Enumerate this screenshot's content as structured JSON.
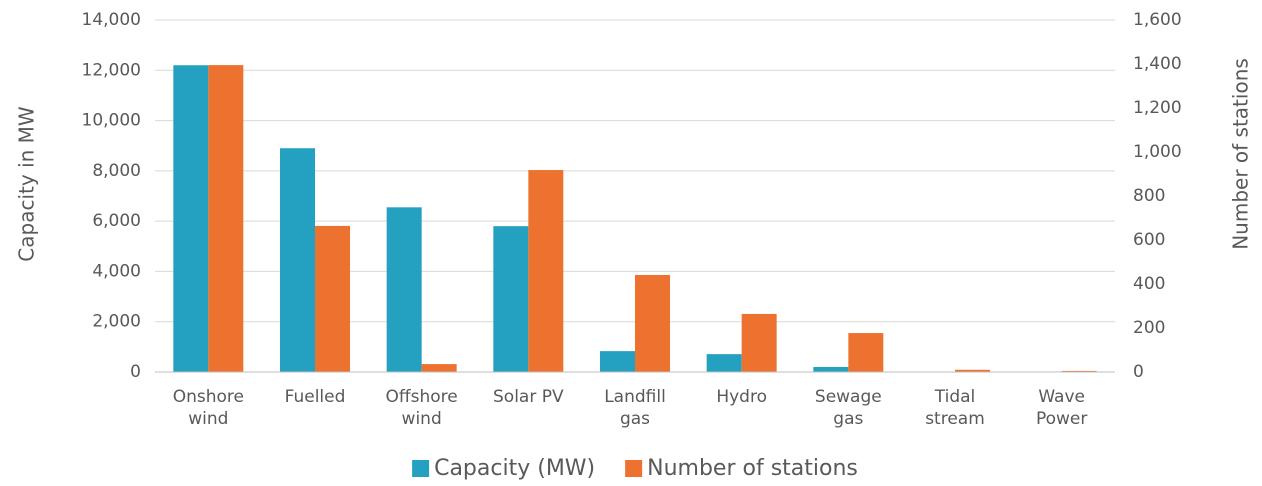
{
  "chart_data": {
    "type": "bar",
    "ylabel": "Capacity in MW",
    "y2label": "Number of stations",
    "categories": [
      "Onshore wind",
      "Fuelled",
      "Offshore wind",
      "Solar PV",
      "Landfill gas",
      "Hydro",
      "Sewage gas",
      "Tidal stream",
      "Wave Power"
    ],
    "series": [
      {
        "name": "Capacity (MW)",
        "color": "#24a0c0",
        "values": [
          12200,
          8900,
          6550,
          5800,
          830,
          710,
          200,
          2,
          1
        ]
      },
      {
        "name": "Number of stations",
        "color": "#ed7230",
        "axis": "y2",
        "values": [
          1395,
          664,
          36,
          918,
          441,
          264,
          177,
          10,
          5
        ]
      }
    ],
    "ylim": [
      0,
      14000
    ],
    "yticks": [
      0,
      {
        "value": 2000,
        "label": "2,000"
      },
      {
        "value": 4000,
        "label": "4,000"
      },
      {
        "value": 6000,
        "label": "6,000"
      },
      {
        "value": 8000,
        "label": "8,000"
      },
      {
        "value": 10000,
        "label": "10,000"
      },
      {
        "value": 12000,
        "label": "12,000"
      },
      {
        "value": 14000,
        "label": "14,000"
      }
    ],
    "y2lim": [
      0,
      1600
    ],
    "y2ticks": [
      0,
      200,
      400,
      600,
      800,
      {
        "value": 1000,
        "label": "1,000"
      },
      {
        "value": 1200,
        "label": "1,200"
      },
      {
        "value": 1400,
        "label": "1,400"
      },
      {
        "value": 1600,
        "label": "1,600"
      }
    ],
    "grid": true,
    "legend": "bottom"
  }
}
